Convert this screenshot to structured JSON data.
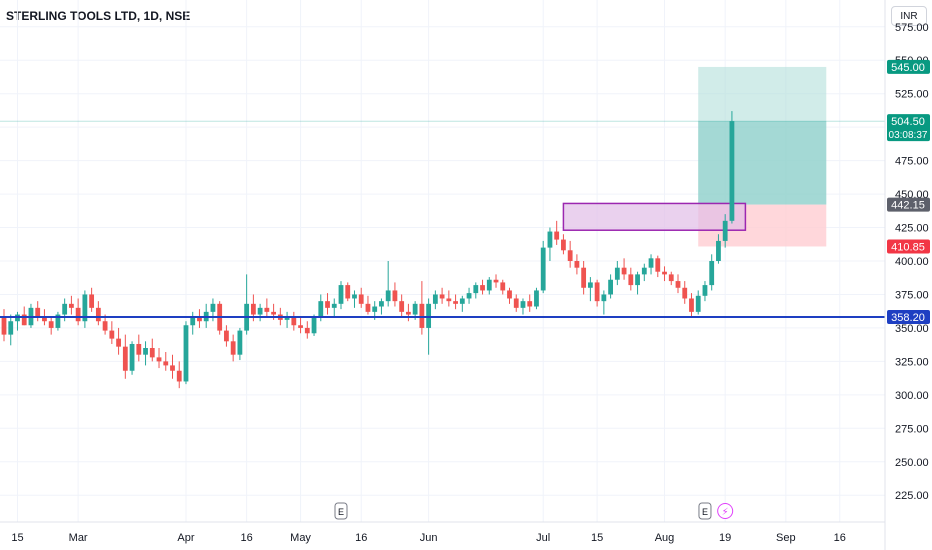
{
  "header": {
    "symbol_title": "STERLING TOOLS LTD, 1D, NSE",
    "currency": "INR"
  },
  "colors": {
    "up": "#26a69a",
    "down": "#ef5350",
    "support_line": "#1e3fc2",
    "zone_border": "#9c27b0",
    "zone_fill": "#e1bee7",
    "target_zone": "#b2dfdb",
    "stop_zone": "#ffcdd2",
    "grid": "#f0f3fa"
  },
  "chart_data": {
    "type": "candlestick",
    "title": "STERLING TOOLS LTD, 1D, NSE",
    "y_axis": {
      "ticks": [
        225,
        250,
        275,
        300,
        325,
        350,
        375,
        400,
        425,
        450,
        475,
        500,
        525,
        550,
        575
      ],
      "range": [
        205,
        595
      ]
    },
    "x_axis": {
      "ticks": [
        {
          "label": "15",
          "index": 2
        },
        {
          "label": "Mar",
          "index": 11
        },
        {
          "label": "Apr",
          "index": 27
        },
        {
          "label": "16",
          "index": 36
        },
        {
          "label": "May",
          "index": 44
        },
        {
          "label": "16",
          "index": 53
        },
        {
          "label": "Jun",
          "index": 63
        },
        {
          "label": "Jul",
          "index": 80
        },
        {
          "label": "15",
          "index": 88
        },
        {
          "label": "Aug",
          "index": 98
        },
        {
          "label": "19",
          "index": 107
        },
        {
          "label": "Sep",
          "index": 116
        },
        {
          "label": "16",
          "index": 124
        }
      ]
    },
    "price_labels": [
      {
        "text": "545.00",
        "value": 545.0,
        "kind": "target"
      },
      {
        "text": "504.50",
        "value": 504.5,
        "kind": "last",
        "sub": "03:08:37"
      },
      {
        "text": "442.15",
        "value": 442.15,
        "kind": "entry"
      },
      {
        "text": "410.85",
        "value": 410.85,
        "kind": "stop"
      },
      {
        "text": "358.20",
        "value": 358.2,
        "kind": "support"
      }
    ],
    "support_level": 358.2,
    "resistance_zone": {
      "from_index": 83,
      "to_index": 110,
      "low": 423,
      "high": 443
    },
    "position": {
      "from_index": 103,
      "to_index": 122,
      "entry": 442.15,
      "target": 545.0,
      "stop": 410.85
    },
    "event_markers": [
      {
        "label": "E",
        "index": 50
      },
      {
        "label": "E",
        "index": 104
      },
      {
        "label": "⚡",
        "index": 107
      }
    ],
    "candles": [
      [
        358,
        364,
        340,
        345
      ],
      [
        345,
        360,
        337,
        355
      ],
      [
        355,
        362,
        348,
        360
      ],
      [
        360,
        366,
        352,
        352
      ],
      [
        352,
        368,
        350,
        365
      ],
      [
        365,
        370,
        355,
        358
      ],
      [
        358,
        364,
        352,
        355
      ],
      [
        355,
        358,
        345,
        350
      ],
      [
        350,
        362,
        348,
        360
      ],
      [
        360,
        372,
        355,
        368
      ],
      [
        368,
        374,
        360,
        365
      ],
      [
        365,
        372,
        352,
        355
      ],
      [
        355,
        378,
        350,
        375
      ],
      [
        375,
        380,
        362,
        365
      ],
      [
        365,
        370,
        352,
        355
      ],
      [
        355,
        360,
        345,
        348
      ],
      [
        348,
        355,
        338,
        342
      ],
      [
        342,
        350,
        330,
        336
      ],
      [
        336,
        345,
        312,
        318
      ],
      [
        318,
        340,
        315,
        338
      ],
      [
        338,
        345,
        325,
        330
      ],
      [
        330,
        340,
        322,
        335
      ],
      [
        335,
        342,
        325,
        328
      ],
      [
        328,
        335,
        320,
        325
      ],
      [
        325,
        332,
        318,
        322
      ],
      [
        322,
        330,
        312,
        318
      ],
      [
        318,
        325,
        305,
        310
      ],
      [
        310,
        355,
        308,
        352
      ],
      [
        352,
        362,
        345,
        358
      ],
      [
        358,
        364,
        350,
        355
      ],
      [
        355,
        368,
        350,
        362
      ],
      [
        362,
        372,
        355,
        368
      ],
      [
        368,
        370,
        345,
        348
      ],
      [
        348,
        352,
        336,
        340
      ],
      [
        340,
        345,
        325,
        330
      ],
      [
        330,
        350,
        326,
        348
      ],
      [
        348,
        390,
        345,
        368
      ],
      [
        368,
        375,
        355,
        360
      ],
      [
        360,
        368,
        355,
        365
      ],
      [
        365,
        372,
        358,
        362
      ],
      [
        362,
        368,
        356,
        360
      ],
      [
        360,
        365,
        352,
        356
      ],
      [
        356,
        362,
        350,
        358
      ],
      [
        358,
        362,
        348,
        352
      ],
      [
        352,
        358,
        346,
        350
      ],
      [
        350,
        355,
        342,
        346
      ],
      [
        346,
        360,
        344,
        358
      ],
      [
        358,
        375,
        355,
        370
      ],
      [
        370,
        376,
        360,
        365
      ],
      [
        365,
        372,
        358,
        368
      ],
      [
        368,
        385,
        364,
        382
      ],
      [
        382,
        384,
        370,
        372
      ],
      [
        372,
        378,
        365,
        375
      ],
      [
        375,
        380,
        365,
        368
      ],
      [
        368,
        374,
        360,
        362
      ],
      [
        362,
        370,
        356,
        366
      ],
      [
        366,
        372,
        360,
        370
      ],
      [
        370,
        400,
        366,
        378
      ],
      [
        378,
        384,
        366,
        370
      ],
      [
        370,
        375,
        358,
        362
      ],
      [
        362,
        368,
        355,
        360
      ],
      [
        360,
        370,
        356,
        368
      ],
      [
        368,
        385,
        345,
        350
      ],
      [
        350,
        372,
        330,
        368
      ],
      [
        368,
        378,
        364,
        375
      ],
      [
        375,
        380,
        368,
        372
      ],
      [
        372,
        378,
        366,
        370
      ],
      [
        370,
        375,
        364,
        368
      ],
      [
        368,
        374,
        362,
        372
      ],
      [
        372,
        380,
        368,
        376
      ],
      [
        376,
        384,
        372,
        382
      ],
      [
        382,
        386,
        375,
        378
      ],
      [
        378,
        388,
        375,
        386
      ],
      [
        386,
        390,
        380,
        384
      ],
      [
        384,
        386,
        375,
        378
      ],
      [
        378,
        380,
        368,
        372
      ],
      [
        372,
        375,
        362,
        365
      ],
      [
        365,
        372,
        360,
        370
      ],
      [
        370,
        375,
        362,
        366
      ],
      [
        366,
        380,
        364,
        378
      ],
      [
        378,
        415,
        376,
        410
      ],
      [
        410,
        425,
        400,
        422
      ],
      [
        422,
        430,
        412,
        416
      ],
      [
        416,
        420,
        405,
        408
      ],
      [
        408,
        415,
        395,
        400
      ],
      [
        400,
        405,
        390,
        395
      ],
      [
        395,
        400,
        375,
        380
      ],
      [
        380,
        388,
        370,
        384
      ],
      [
        384,
        386,
        366,
        370
      ],
      [
        370,
        378,
        360,
        375
      ],
      [
        375,
        390,
        372,
        386
      ],
      [
        386,
        400,
        382,
        395
      ],
      [
        395,
        402,
        386,
        390
      ],
      [
        390,
        395,
        378,
        382
      ],
      [
        382,
        392,
        375,
        390
      ],
      [
        390,
        398,
        385,
        395
      ],
      [
        395,
        405,
        390,
        402
      ],
      [
        402,
        404,
        388,
        392
      ],
      [
        392,
        396,
        385,
        390
      ],
      [
        390,
        392,
        382,
        385
      ],
      [
        385,
        390,
        376,
        380
      ],
      [
        380,
        385,
        368,
        372
      ],
      [
        372,
        376,
        358,
        362
      ],
      [
        362,
        378,
        360,
        374
      ],
      [
        374,
        385,
        370,
        382
      ],
      [
        382,
        405,
        378,
        400
      ],
      [
        400,
        420,
        398,
        415
      ],
      [
        415,
        435,
        410,
        430
      ],
      [
        430,
        512,
        428,
        504.5
      ]
    ]
  }
}
